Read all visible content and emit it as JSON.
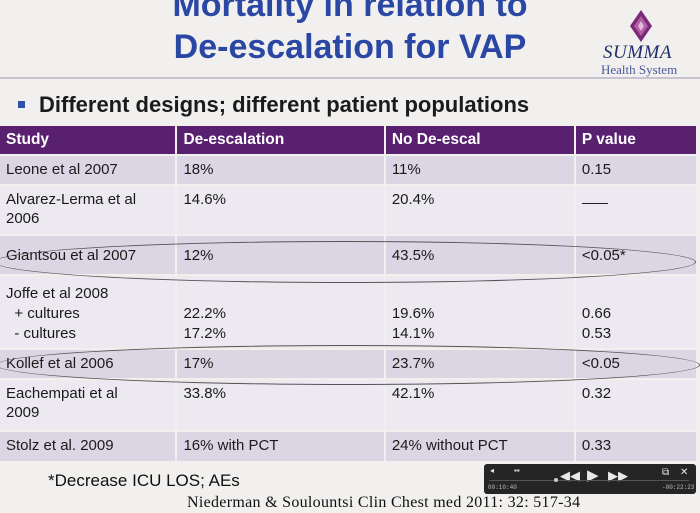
{
  "slide": {
    "title_line1": "Mortality in relation to",
    "title_line2": "De-escalation for VAP",
    "logo_name": "SUMMA",
    "logo_sub": "Health System",
    "bullet": "Different designs; different patient populations",
    "footnote": "*Decrease  ICU LOS; AEs",
    "citation": "Niederman  & Soulountsi Clin Chest med  2011: 32: 517-34",
    "colors": {
      "title": "#2a47a3",
      "header_bg": "#5a2070",
      "row_odd": "#dcd6e4",
      "row_even": "#ece9f0"
    }
  },
  "table": {
    "headers": [
      "Study",
      "De-escalation",
      "No De-escal",
      "P value"
    ],
    "rows": [
      {
        "study": [
          "Leone et al 2007"
        ],
        "deesc": [
          "18%"
        ],
        "nodeesc": [
          "11%"
        ],
        "p": [
          "0.15"
        ]
      },
      {
        "study": [
          "Alvarez-Lerma et al",
          "2006"
        ],
        "deesc": [
          "14.6%"
        ],
        "nodeesc": [
          "20.4%"
        ],
        "p": []
      },
      {
        "study": [
          "Giantsou et al 2007"
        ],
        "deesc": [
          "12%"
        ],
        "nodeesc": [
          "43.5%"
        ],
        "p": [
          "<0.05*"
        ]
      },
      {
        "study": [
          "Joffe et al 2008",
          "  + cultures",
          "  - cultures"
        ],
        "deesc": [
          "",
          "22.2%",
          "17.2%"
        ],
        "nodeesc": [
          "",
          "19.6%",
          "14.1%"
        ],
        "p": [
          "",
          "0.66",
          "0.53"
        ]
      },
      {
        "study": [
          "Kollef et al 2006"
        ],
        "deesc": [
          "17%"
        ],
        "nodeesc": [
          "23.7%"
        ],
        "p": [
          "<0.05"
        ]
      },
      {
        "study": [
          "Eachempati et al",
          "2009"
        ],
        "deesc": [
          "33.8%"
        ],
        "nodeesc": [
          "42.1%"
        ],
        "p": [
          "0.32"
        ]
      },
      {
        "study": [
          "Stolz et al. 2009"
        ],
        "deesc": [
          "16% with PCT"
        ],
        "nodeesc": [
          "24% without PCT"
        ],
        "p": [
          "0.33"
        ]
      }
    ]
  },
  "player": {
    "time_elapsed": "00:10:40",
    "time_remaining": "-00:22:23",
    "rewind_icon": "rewind-icon",
    "play_icon": "play-icon",
    "forward_icon": "fast-forward-icon"
  }
}
